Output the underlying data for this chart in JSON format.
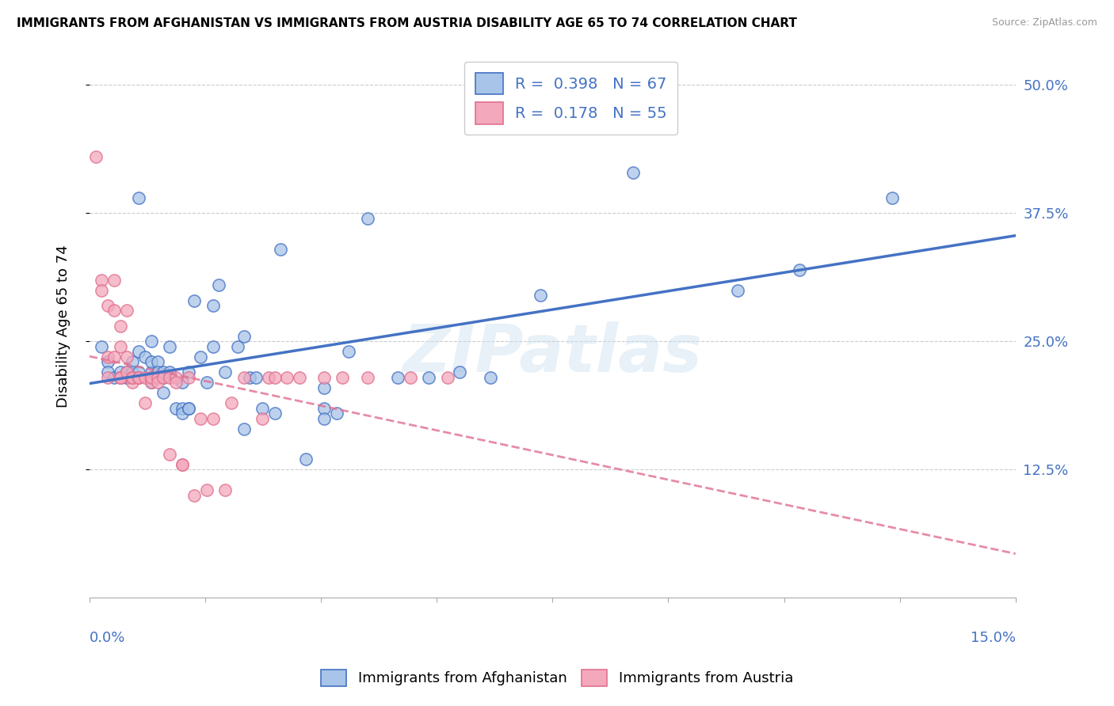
{
  "title": "IMMIGRANTS FROM AFGHANISTAN VS IMMIGRANTS FROM AUSTRIA DISABILITY AGE 65 TO 74 CORRELATION CHART",
  "source": "Source: ZipAtlas.com",
  "ylabel": "Disability Age 65 to 74",
  "yticks_labels": [
    "12.5%",
    "25.0%",
    "37.5%",
    "50.0%"
  ],
  "ytick_vals": [
    0.125,
    0.25,
    0.375,
    0.5
  ],
  "xlim": [
    0.0,
    0.15
  ],
  "ylim": [
    0.0,
    0.53
  ],
  "legend_R1": "0.398",
  "legend_N1": "67",
  "legend_R2": "0.178",
  "legend_N2": "55",
  "color_afghanistan_fill": "#a8c4e8",
  "color_afghanistan_edge": "#4472C4",
  "color_austria_fill": "#f4a8bc",
  "color_austria_edge": "#e07090",
  "color_line_afghanistan": "#4472C4",
  "color_line_austria": "#e07090",
  "color_axis_blue": "#4472C4",
  "watermark": "ZIPatlas",
  "afghanistan_x": [
    0.002,
    0.003,
    0.003,
    0.004,
    0.005,
    0.005,
    0.006,
    0.006,
    0.006,
    0.007,
    0.007,
    0.007,
    0.008,
    0.008,
    0.008,
    0.009,
    0.01,
    0.01,
    0.01,
    0.01,
    0.01,
    0.011,
    0.011,
    0.011,
    0.012,
    0.012,
    0.012,
    0.013,
    0.013,
    0.014,
    0.015,
    0.015,
    0.015,
    0.016,
    0.016,
    0.016,
    0.017,
    0.018,
    0.019,
    0.02,
    0.02,
    0.021,
    0.022,
    0.024,
    0.025,
    0.025,
    0.026,
    0.027,
    0.028,
    0.03,
    0.031,
    0.035,
    0.038,
    0.038,
    0.038,
    0.04,
    0.042,
    0.045,
    0.05,
    0.055,
    0.06,
    0.065,
    0.073,
    0.088,
    0.105,
    0.115,
    0.13
  ],
  "afghanistan_y": [
    0.245,
    0.23,
    0.22,
    0.215,
    0.215,
    0.22,
    0.215,
    0.215,
    0.22,
    0.23,
    0.22,
    0.215,
    0.24,
    0.39,
    0.22,
    0.235,
    0.215,
    0.22,
    0.25,
    0.21,
    0.23,
    0.23,
    0.22,
    0.215,
    0.22,
    0.2,
    0.215,
    0.245,
    0.22,
    0.185,
    0.185,
    0.21,
    0.18,
    0.185,
    0.185,
    0.22,
    0.29,
    0.235,
    0.21,
    0.245,
    0.285,
    0.305,
    0.22,
    0.245,
    0.255,
    0.165,
    0.215,
    0.215,
    0.185,
    0.18,
    0.34,
    0.135,
    0.205,
    0.185,
    0.175,
    0.18,
    0.24,
    0.37,
    0.215,
    0.215,
    0.22,
    0.215,
    0.295,
    0.415,
    0.3,
    0.32,
    0.39
  ],
  "austria_x": [
    0.001,
    0.002,
    0.002,
    0.003,
    0.003,
    0.003,
    0.004,
    0.004,
    0.004,
    0.005,
    0.005,
    0.005,
    0.005,
    0.005,
    0.006,
    0.006,
    0.006,
    0.007,
    0.007,
    0.007,
    0.008,
    0.008,
    0.008,
    0.009,
    0.009,
    0.01,
    0.01,
    0.01,
    0.011,
    0.011,
    0.012,
    0.013,
    0.013,
    0.014,
    0.014,
    0.015,
    0.015,
    0.016,
    0.017,
    0.018,
    0.019,
    0.02,
    0.022,
    0.023,
    0.025,
    0.028,
    0.029,
    0.03,
    0.032,
    0.034,
    0.038,
    0.041,
    0.045,
    0.052,
    0.058
  ],
  "austria_y": [
    0.43,
    0.31,
    0.3,
    0.285,
    0.235,
    0.215,
    0.31,
    0.28,
    0.235,
    0.265,
    0.245,
    0.215,
    0.215,
    0.215,
    0.235,
    0.22,
    0.28,
    0.21,
    0.215,
    0.215,
    0.215,
    0.215,
    0.215,
    0.215,
    0.19,
    0.215,
    0.21,
    0.215,
    0.215,
    0.21,
    0.215,
    0.215,
    0.14,
    0.215,
    0.21,
    0.13,
    0.13,
    0.215,
    0.1,
    0.175,
    0.105,
    0.175,
    0.105,
    0.19,
    0.215,
    0.175,
    0.215,
    0.215,
    0.215,
    0.215,
    0.215,
    0.215,
    0.215,
    0.215,
    0.215
  ]
}
